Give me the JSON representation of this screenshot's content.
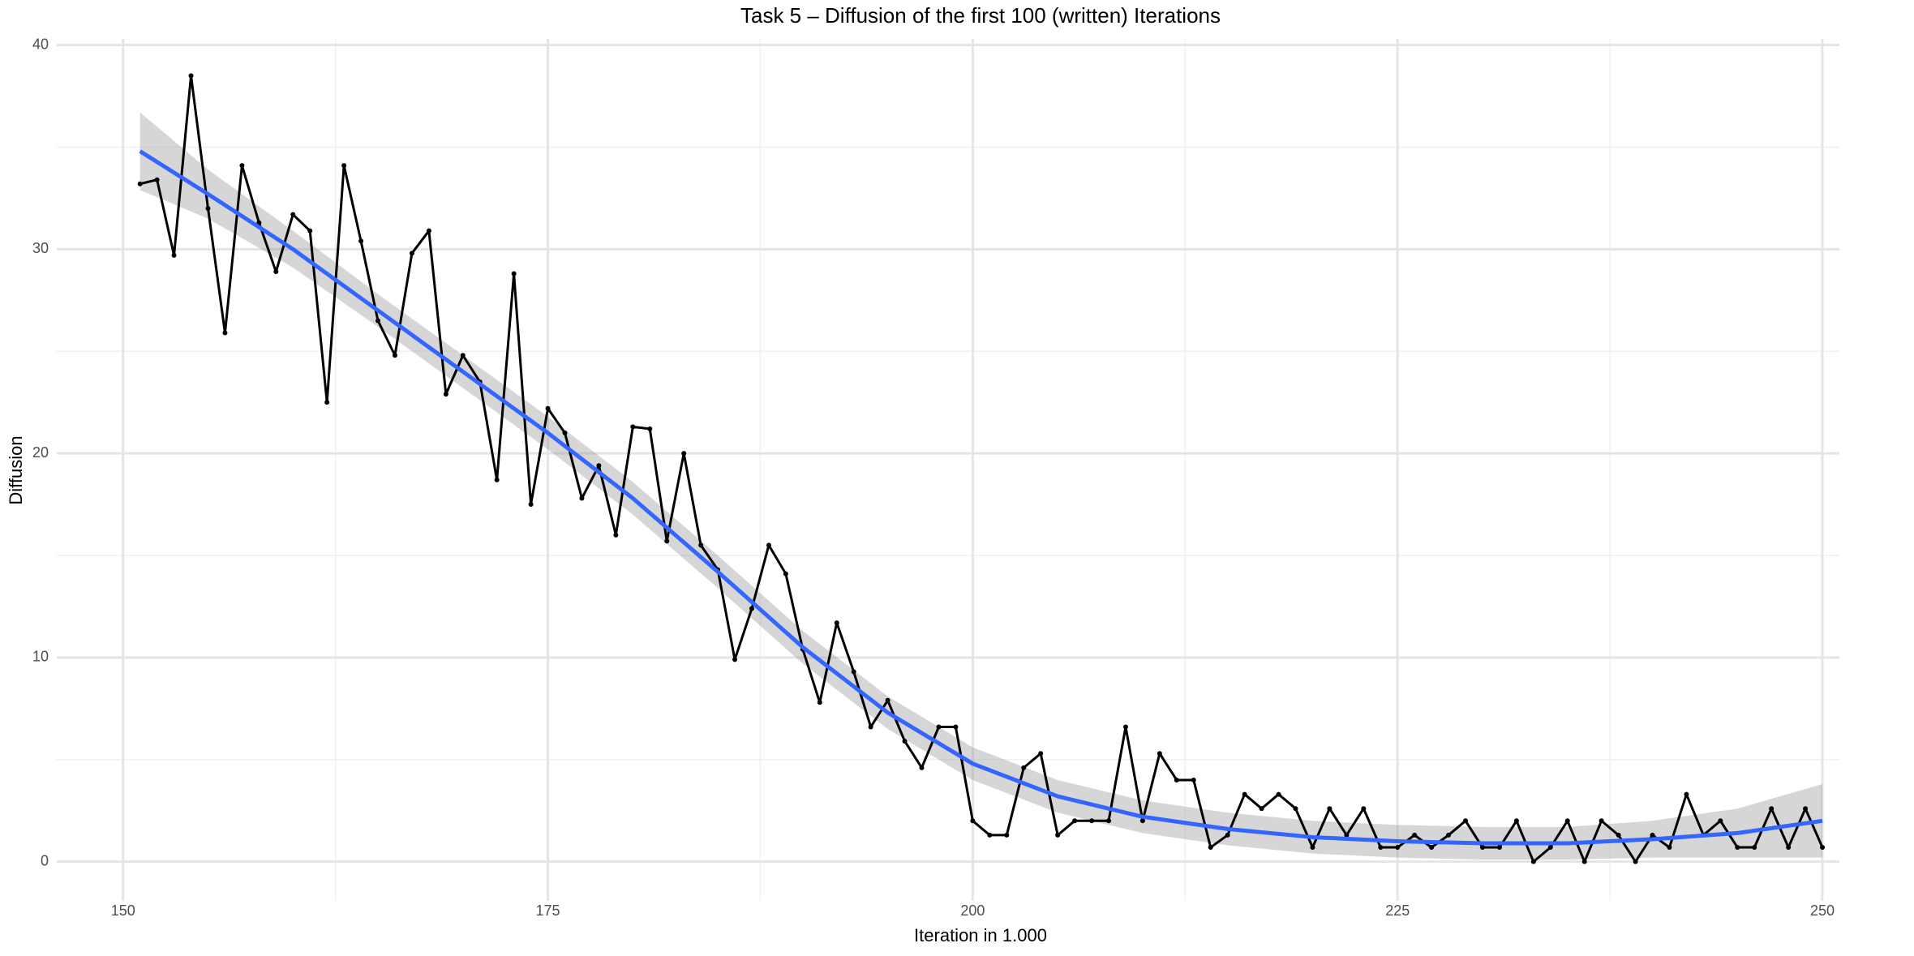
{
  "chart_data": {
    "type": "line",
    "title": "Task 5 – Diffusion of the first 100 (written) Iterations",
    "x_label": "Iteration in 1.000",
    "y_label": "Diffusion",
    "x": [
      151,
      152,
      153,
      154,
      155,
      156,
      157,
      158,
      159,
      160,
      161,
      162,
      163,
      164,
      165,
      166,
      167,
      168,
      169,
      170,
      171,
      172,
      173,
      174,
      175,
      176,
      177,
      178,
      179,
      180,
      181,
      182,
      183,
      184,
      185,
      186,
      187,
      188,
      189,
      190,
      191,
      192,
      193,
      194,
      195,
      196,
      197,
      198,
      199,
      200,
      201,
      202,
      203,
      204,
      205,
      206,
      207,
      208,
      209,
      210,
      211,
      212,
      213,
      214,
      215,
      216,
      217,
      218,
      219,
      220,
      221,
      222,
      223,
      224,
      225,
      226,
      227,
      228,
      229,
      230,
      231,
      232,
      233,
      234,
      235,
      236,
      237,
      238,
      239,
      240,
      241,
      242,
      243,
      244,
      245,
      246,
      247,
      248,
      249,
      250
    ],
    "values": [
      33.2,
      33.4,
      29.7,
      38.5,
      32.0,
      25.9,
      34.1,
      31.3,
      28.9,
      31.7,
      30.9,
      22.5,
      34.1,
      30.4,
      26.5,
      24.8,
      29.8,
      30.9,
      22.9,
      24.8,
      23.5,
      18.7,
      28.8,
      17.5,
      22.2,
      21.0,
      17.8,
      19.4,
      16.0,
      21.3,
      21.2,
      15.7,
      20.0,
      15.5,
      14.3,
      9.9,
      12.4,
      15.5,
      14.1,
      10.4,
      7.8,
      11.7,
      9.3,
      6.6,
      7.9,
      5.9,
      4.6,
      6.6,
      6.6,
      2.0,
      1.3,
      1.3,
      4.6,
      5.3,
      1.3,
      2.0,
      2.0,
      2.0,
      6.6,
      2.0,
      5.3,
      4.0,
      4.0,
      0.7,
      1.3,
      3.3,
      2.6,
      3.3,
      2.6,
      0.7,
      2.6,
      1.3,
      2.6,
      0.7,
      0.7,
      1.3,
      0.7,
      1.3,
      2.0,
      0.7,
      0.7,
      2.0,
      0,
      0.7,
      2.0,
      0,
      2.0,
      1.3,
      0,
      1.3,
      0.7,
      3.3,
      1.3,
      2.0,
      0.7,
      0.7,
      2.6,
      0.7,
      2.6,
      0.7
    ],
    "color": "#000000",
    "smooth": {
      "color": "#3366FF",
      "band_color": "#999999",
      "x": [
        151,
        155,
        160,
        165,
        170,
        175,
        180,
        185,
        190,
        195,
        200,
        205,
        210,
        215,
        220,
        225,
        230,
        235,
        240,
        245,
        250
      ],
      "values": [
        34.8,
        32.7,
        30.0,
        27.0,
        24.0,
        21.0,
        17.8,
        14.2,
        10.5,
        7.3,
        4.8,
        3.2,
        2.2,
        1.6,
        1.2,
        1.0,
        0.9,
        0.9,
        1.1,
        1.4,
        2.0
      ],
      "lower": [
        32.9,
        31.5,
        29.1,
        26.2,
        23.2,
        20.2,
        17.0,
        13.4,
        9.7,
        6.5,
        4.0,
        2.4,
        1.4,
        0.8,
        0.4,
        0.2,
        0.1,
        0.1,
        0.2,
        0.2,
        0.2
      ],
      "upper": [
        36.7,
        33.9,
        30.9,
        27.8,
        24.8,
        21.8,
        18.6,
        15.0,
        11.3,
        8.1,
        5.6,
        4.0,
        3.0,
        2.4,
        2.0,
        1.8,
        1.7,
        1.7,
        2.0,
        2.6,
        3.8
      ]
    },
    "xlim": [
      146.1,
      251.0
    ],
    "ylim": [
      -1.92,
      40.3
    ],
    "xticks": [
      150,
      175,
      200,
      225,
      250
    ],
    "yticks": [
      0,
      10,
      20,
      30,
      40
    ],
    "xminor": [
      162.5,
      187.5,
      212.5,
      237.5
    ],
    "yminor": [
      5,
      15,
      25,
      35
    ],
    "grid": true
  }
}
